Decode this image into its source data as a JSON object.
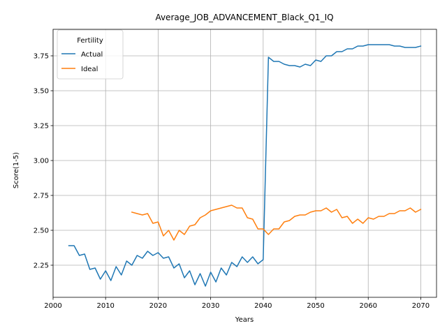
{
  "chart_data": {
    "type": "line",
    "title": "Average_JOB_ADVANCEMENT_Black_Q1_IQ",
    "xlabel": "Years",
    "ylabel": "Score(1-5)",
    "xlim": [
      2000,
      2073
    ],
    "ylim": [
      2.02,
      3.94
    ],
    "xticks": [
      2000,
      2010,
      2020,
      2030,
      2040,
      2050,
      2060,
      2070
    ],
    "xtick_labels": [
      "2000",
      "2010",
      "2020",
      "2030",
      "2040",
      "2050",
      "2060",
      "2070"
    ],
    "yticks": [
      2.25,
      2.5,
      2.75,
      3.0,
      3.25,
      3.5,
      3.75
    ],
    "ytick_labels": [
      "2.25",
      "2.50",
      "2.75",
      "3.00",
      "3.25",
      "3.50",
      "3.75"
    ],
    "grid": true,
    "legend": {
      "title": "Fertility",
      "position": "top-left"
    },
    "series": [
      {
        "name": "Actual",
        "color": "#1f77b4",
        "x": [
          2003,
          2004,
          2005,
          2006,
          2007,
          2008,
          2009,
          2010,
          2011,
          2012,
          2013,
          2014,
          2015,
          2016,
          2017,
          2018,
          2019,
          2020,
          2021,
          2022,
          2023,
          2024,
          2025,
          2026,
          2027,
          2028,
          2029,
          2030,
          2031,
          2032,
          2033,
          2034,
          2035,
          2036,
          2037,
          2038,
          2039,
          2040,
          2041,
          2042,
          2043,
          2044,
          2045,
          2046,
          2047,
          2048,
          2049,
          2050,
          2051,
          2052,
          2053,
          2054,
          2055,
          2056,
          2057,
          2058,
          2059,
          2060,
          2061,
          2062,
          2063,
          2064,
          2065,
          2066,
          2067,
          2068,
          2069,
          2070
        ],
        "values": [
          2.39,
          2.39,
          2.32,
          2.33,
          2.22,
          2.23,
          2.15,
          2.21,
          2.14,
          2.24,
          2.18,
          2.28,
          2.25,
          2.32,
          2.3,
          2.35,
          2.32,
          2.34,
          2.3,
          2.31,
          2.23,
          2.26,
          2.16,
          2.21,
          2.11,
          2.19,
          2.1,
          2.2,
          2.13,
          2.23,
          2.18,
          2.27,
          2.24,
          2.31,
          2.27,
          2.31,
          2.26,
          2.29,
          3.74,
          3.71,
          3.71,
          3.69,
          3.68,
          3.68,
          3.67,
          3.69,
          3.68,
          3.72,
          3.71,
          3.75,
          3.75,
          3.78,
          3.78,
          3.8,
          3.8,
          3.82,
          3.82,
          3.83,
          3.83,
          3.83,
          3.83,
          3.83,
          3.82,
          3.82,
          3.81,
          3.81,
          3.81,
          3.82
        ]
      },
      {
        "name": "Ideal",
        "color": "#ff7f0e",
        "x": [
          2015,
          2016,
          2017,
          2018,
          2019,
          2020,
          2021,
          2022,
          2023,
          2024,
          2025,
          2026,
          2027,
          2028,
          2029,
          2030,
          2031,
          2032,
          2033,
          2034,
          2035,
          2036,
          2037,
          2038,
          2039,
          2040,
          2041,
          2042,
          2043,
          2044,
          2045,
          2046,
          2047,
          2048,
          2049,
          2050,
          2051,
          2052,
          2053,
          2054,
          2055,
          2056,
          2057,
          2058,
          2059,
          2060,
          2061,
          2062,
          2063,
          2064,
          2065,
          2066,
          2067,
          2068,
          2069,
          2070
        ],
        "values": [
          2.63,
          2.62,
          2.61,
          2.62,
          2.55,
          2.56,
          2.46,
          2.5,
          2.43,
          2.5,
          2.47,
          2.53,
          2.54,
          2.59,
          2.61,
          2.64,
          2.65,
          2.66,
          2.67,
          2.68,
          2.66,
          2.66,
          2.59,
          2.58,
          2.51,
          2.51,
          2.47,
          2.51,
          2.51,
          2.56,
          2.57,
          2.6,
          2.61,
          2.61,
          2.63,
          2.64,
          2.64,
          2.66,
          2.63,
          2.65,
          2.59,
          2.6,
          2.55,
          2.58,
          2.55,
          2.59,
          2.58,
          2.6,
          2.6,
          2.62,
          2.62,
          2.64,
          2.64,
          2.66,
          2.63,
          2.65
        ]
      }
    ]
  }
}
